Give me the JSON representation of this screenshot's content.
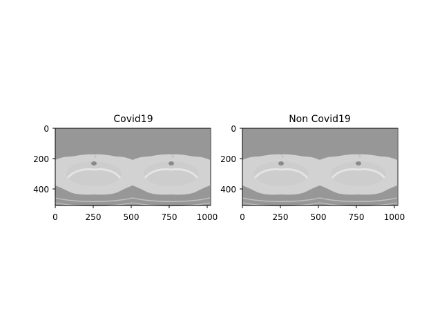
{
  "panels": [
    {
      "title": "Covid19",
      "x_ticks": [
        "0",
        "250",
        "500",
        "750",
        "1000"
      ],
      "y_ticks": [
        "0",
        "200",
        "400"
      ],
      "image_kind": "ct-scan-slice-pair"
    },
    {
      "title": "Non Covid19",
      "x_ticks": [
        "0",
        "250",
        "500",
        "750",
        "1000"
      ],
      "y_ticks": [
        "0",
        "200",
        "400"
      ],
      "image_kind": "ct-scan-slice-pair"
    }
  ],
  "colors": {
    "ct_background": "#979797",
    "ct_body": "#d0d0d0",
    "ct_bone": "#eeeeee",
    "axis_frame": "#000000"
  }
}
